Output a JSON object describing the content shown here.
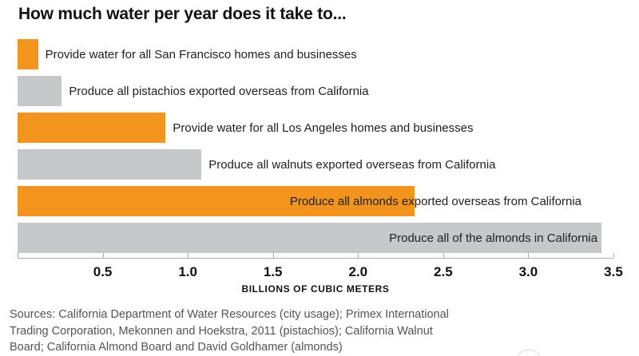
{
  "title": "How much water per year does it take to...",
  "chart_data": {
    "type": "bar",
    "orientation": "horizontal",
    "title": "How much water per year does it take to...",
    "xlabel": "BILLIONS OF CUBIC METERS",
    "xlim": [
      0,
      3.5
    ],
    "x_ticks": [
      0.5,
      1.0,
      1.5,
      2.0,
      2.5,
      3.0,
      3.5
    ],
    "grid": false,
    "categories": [
      "Provide water for all San Francisco homes and businesses",
      "Produce all pistachios exported overseas from California",
      "Provide water for all Los Angeles homes and businesses",
      "Produce all walnuts exported overseas from California",
      "Produce all almonds exported overseas from California",
      "Produce all of the almonds in California"
    ],
    "values": [
      0.12,
      0.26,
      0.87,
      1.08,
      2.33,
      3.43
    ],
    "bars": [
      {
        "label": "Provide water for all San Francisco homes and businesses",
        "value": 0.12,
        "color_key": "orange"
      },
      {
        "label": "Produce all pistachios exported overseas from California",
        "value": 0.26,
        "color_key": "gray"
      },
      {
        "label": "Provide water for all Los Angeles homes and businesses",
        "value": 0.87,
        "color_key": "orange"
      },
      {
        "label": "Produce all walnuts exported overseas from California",
        "value": 1.08,
        "color_key": "gray"
      },
      {
        "label": "Produce all almonds exported overseas from California",
        "value": 2.33,
        "color_key": "orange"
      },
      {
        "label": "Produce all of the almonds in California",
        "value": 3.43,
        "color_key": "gray"
      }
    ],
    "colors": {
      "orange": "#F3941E",
      "gray": "#C7C8C9"
    }
  },
  "sources": {
    "line1": "Sources: California Department of Water Resources (city usage); Primex International",
    "line2": "Trading Corporation, Mekonnen and Hoekstra, 2011 (pistachios); California Walnut",
    "line3": "Board; California Almond Board and David Goldhamer (almonds)"
  }
}
